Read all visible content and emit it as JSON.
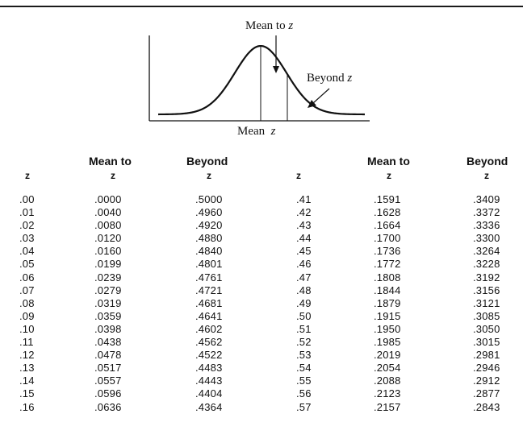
{
  "diagram": {
    "label_mean_to": "Mean to",
    "label_beyond": "Beyond",
    "label_mean": "Mean",
    "label_z": "z"
  },
  "columns": {
    "c1": {
      "line1": "",
      "line2": "z"
    },
    "c2": {
      "line1": "Mean to",
      "line2": "z"
    },
    "c3": {
      "line1": "Beyond",
      "line2": "z"
    },
    "c4": {
      "line1": "",
      "line2": "z"
    },
    "c5": {
      "line1": "Mean to",
      "line2": "z"
    },
    "c6": {
      "line1": "Beyond",
      "line2": "z"
    }
  },
  "rows": [
    [
      ".00",
      ".0000",
      ".5000",
      ".41",
      ".1591",
      ".3409"
    ],
    [
      ".01",
      ".0040",
      ".4960",
      ".42",
      ".1628",
      ".3372"
    ],
    [
      ".02",
      ".0080",
      ".4920",
      ".43",
      ".1664",
      ".3336"
    ],
    [
      ".03",
      ".0120",
      ".4880",
      ".44",
      ".1700",
      ".3300"
    ],
    [
      ".04",
      ".0160",
      ".4840",
      ".45",
      ".1736",
      ".3264"
    ],
    [
      ".05",
      ".0199",
      ".4801",
      ".46",
      ".1772",
      ".3228"
    ],
    [
      ".06",
      ".0239",
      ".4761",
      ".47",
      ".1808",
      ".3192"
    ],
    [
      ".07",
      ".0279",
      ".4721",
      ".48",
      ".1844",
      ".3156"
    ],
    [
      ".08",
      ".0319",
      ".4681",
      ".49",
      ".1879",
      ".3121"
    ],
    [
      ".09",
      ".0359",
      ".4641",
      ".50",
      ".1915",
      ".3085"
    ],
    [
      ".10",
      ".0398",
      ".4602",
      ".51",
      ".1950",
      ".3050"
    ],
    [
      ".11",
      ".0438",
      ".4562",
      ".52",
      ".1985",
      ".3015"
    ],
    [
      ".12",
      ".0478",
      ".4522",
      ".53",
      ".2019",
      ".2981"
    ],
    [
      ".13",
      ".0517",
      ".4483",
      ".54",
      ".2054",
      ".2946"
    ],
    [
      ".14",
      ".0557",
      ".4443",
      ".55",
      ".2088",
      ".2912"
    ],
    [
      ".15",
      ".0596",
      ".4404",
      ".56",
      ".2123",
      ".2877"
    ],
    [
      ".16",
      ".0636",
      ".4364",
      ".57",
      ".2157",
      ".2843"
    ]
  ]
}
